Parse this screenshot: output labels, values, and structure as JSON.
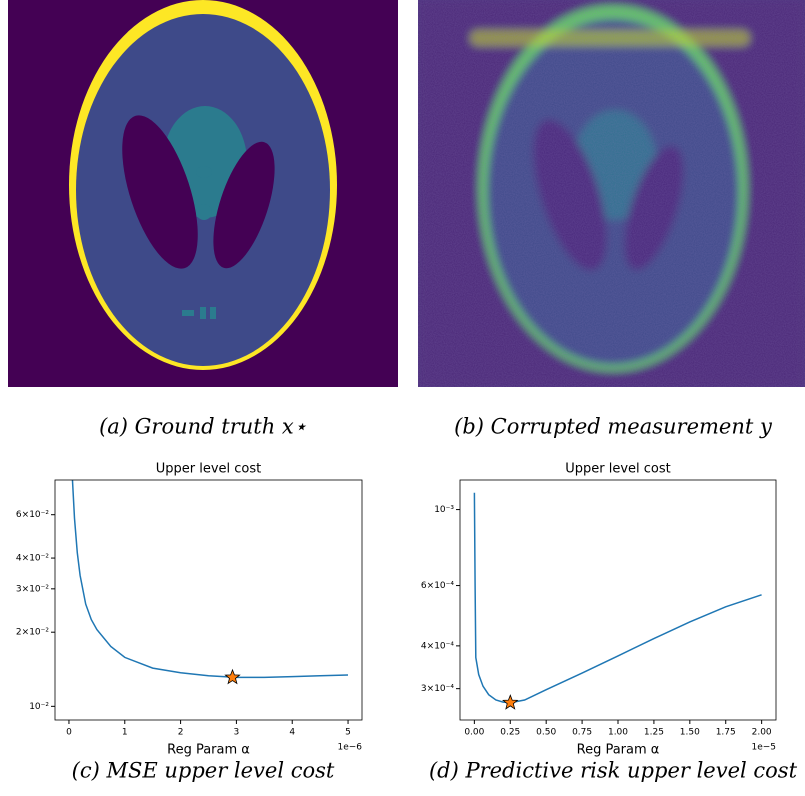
{
  "captions": [
    "(a) Ground truth x⋆",
    "(b) Corrupted measurement y",
    "(c) MSE upper level cost",
    "(d) Predictive risk upper level cost"
  ],
  "chart_data": [
    {
      "type": "line",
      "title": "Upper level cost",
      "x_label": "Reg Param α",
      "x_offset_label": "1e−6",
      "log_y": true,
      "color": "#1f77b4",
      "x": [
        0.05,
        0.1,
        0.15,
        0.2,
        0.3,
        0.4,
        0.5,
        0.75,
        1,
        1.5,
        2,
        2.5,
        3,
        3.5,
        4,
        4.5,
        5
      ],
      "values": [
        0.095,
        0.058,
        0.042,
        0.034,
        0.026,
        0.0225,
        0.0205,
        0.0175,
        0.0158,
        0.0143,
        0.0137,
        0.0133,
        0.0131,
        0.0131,
        0.0132,
        0.0133,
        0.0134
      ],
      "marker": {
        "x": 2.93,
        "y": 0.0131,
        "color": "#ff7f0e"
      },
      "xlim": [
        -0.25,
        5.25
      ],
      "ylim": [
        0.0088,
        0.083
      ],
      "xticks": [
        0,
        1,
        2,
        3,
        4,
        5
      ],
      "yticks": [
        {
          "value": 0.01,
          "label": "10⁻²"
        },
        {
          "value": 0.02,
          "label": "2×10⁻²"
        },
        {
          "value": 0.03,
          "label": "3×10⁻²"
        },
        {
          "value": 0.04,
          "label": "4×10⁻²"
        },
        {
          "value": 0.06,
          "label": "6×10⁻²"
        }
      ]
    },
    {
      "type": "line",
      "title": "Upper level cost",
      "x_label": "Reg Param α",
      "x_offset_label": "1e−5",
      "log_y": true,
      "color": "#1f77b4",
      "x": [
        0,
        0.005,
        0.01,
        0.03,
        0.06,
        0.1,
        0.15,
        0.2,
        0.25,
        0.35,
        0.5,
        0.75,
        1,
        1.25,
        1.5,
        1.75,
        2
      ],
      "values": [
        0.00112,
        0.0006,
        0.00037,
        0.00033,
        0.000305,
        0.000288,
        0.000278,
        0.000274,
        0.000273,
        0.000278,
        0.000298,
        0.000333,
        0.000374,
        0.00042,
        0.00047,
        0.00052,
        0.000564
      ],
      "marker": {
        "x": 0.25,
        "y": 0.000273,
        "color": "#ff7f0e"
      },
      "xlim": [
        -0.1,
        2.1
      ],
      "ylim": [
        0.000243,
        0.00122
      ],
      "xticks": [
        {
          "value": 0,
          "label": "0.00"
        },
        {
          "value": 0.25,
          "label": "0.25"
        },
        {
          "value": 0.5,
          "label": "0.50"
        },
        {
          "value": 0.75,
          "label": "0.75"
        },
        {
          "value": 1,
          "label": "1.00"
        },
        {
          "value": 1.25,
          "label": "1.25"
        },
        {
          "value": 1.5,
          "label": "1.50"
        },
        {
          "value": 1.75,
          "label": "1.75"
        },
        {
          "value": 2,
          "label": "2.00"
        }
      ],
      "yticks": [
        {
          "value": 0.0003,
          "label": "3×10⁻⁴"
        },
        {
          "value": 0.0004,
          "label": "4×10⁻⁴"
        },
        {
          "value": 0.0006,
          "label": "6×10⁻⁴"
        },
        {
          "value": 0.001,
          "label": "10⁻³"
        }
      ]
    }
  ]
}
